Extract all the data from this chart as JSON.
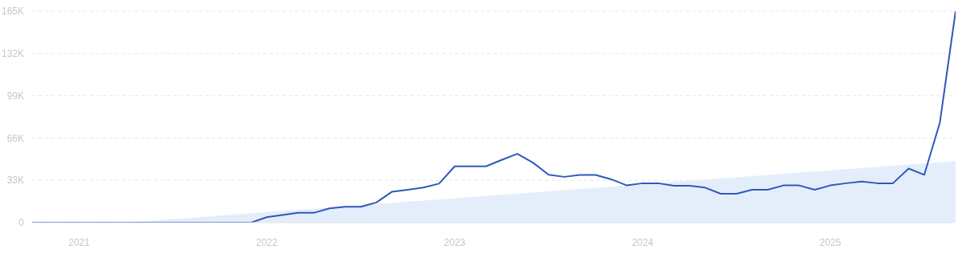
{
  "chart_data": {
    "type": "line",
    "x": [
      "2020-10",
      "2020-11",
      "2020-12",
      "2021-01",
      "2021-02",
      "2021-03",
      "2021-04",
      "2021-05",
      "2021-06",
      "2021-07",
      "2021-08",
      "2021-09",
      "2021-10",
      "2021-11",
      "2021-12",
      "2022-01",
      "2022-02",
      "2022-03",
      "2022-04",
      "2022-05",
      "2022-06",
      "2022-07",
      "2022-08",
      "2022-09",
      "2022-10",
      "2022-11",
      "2022-12",
      "2023-01",
      "2023-02",
      "2023-03",
      "2023-04",
      "2023-05",
      "2023-06",
      "2023-07",
      "2023-08",
      "2023-09",
      "2023-10",
      "2023-11",
      "2023-12",
      "2024-01",
      "2024-02",
      "2024-03",
      "2024-04",
      "2024-05",
      "2024-06",
      "2024-07",
      "2024-08",
      "2024-09",
      "2024-10",
      "2024-11",
      "2024-12",
      "2025-01",
      "2025-02",
      "2025-03",
      "2025-04",
      "2025-05",
      "2025-06",
      "2025-07",
      "2025-08",
      "2025-09"
    ],
    "series": [
      {
        "color": "#2f58bb",
        "values": [
          0,
          0,
          0,
          0,
          0,
          0,
          0,
          0,
          0,
          0,
          0,
          0,
          0,
          0,
          0,
          4200,
          5900,
          7600,
          7600,
          11100,
          12400,
          12400,
          15700,
          24100,
          25600,
          27300,
          30400,
          43900,
          43900,
          43900,
          48900,
          53700,
          46800,
          37300,
          35700,
          37200,
          37200,
          33800,
          29000,
          30700,
          30700,
          28800,
          28800,
          27300,
          22500,
          22500,
          25600,
          25600,
          29000,
          29000,
          25600,
          29000,
          30700,
          32100,
          30700,
          30700,
          42200,
          37300,
          78300,
          165000
        ]
      },
      {
        "type": "area",
        "color": "#e4eefb",
        "x": [
          "2021-04",
          "2025-09"
        ],
        "values": [
          0,
          48000
        ]
      }
    ],
    "xlim": [
      "2020-10",
      "2025-09"
    ],
    "xticks": [
      "2021",
      "2022",
      "2023",
      "2024",
      "2025"
    ],
    "ylim": [
      0,
      165000
    ],
    "yticks": [
      0,
      {
        "value": 33000,
        "label": "33K"
      },
      {
        "value": 66000,
        "label": "66K"
      },
      {
        "value": 99000,
        "label": "99K"
      },
      {
        "value": 132000,
        "label": "132K"
      },
      {
        "value": 165000,
        "label": "165K"
      }
    ],
    "grid": "y",
    "line_style": "solid",
    "marker": "none"
  }
}
